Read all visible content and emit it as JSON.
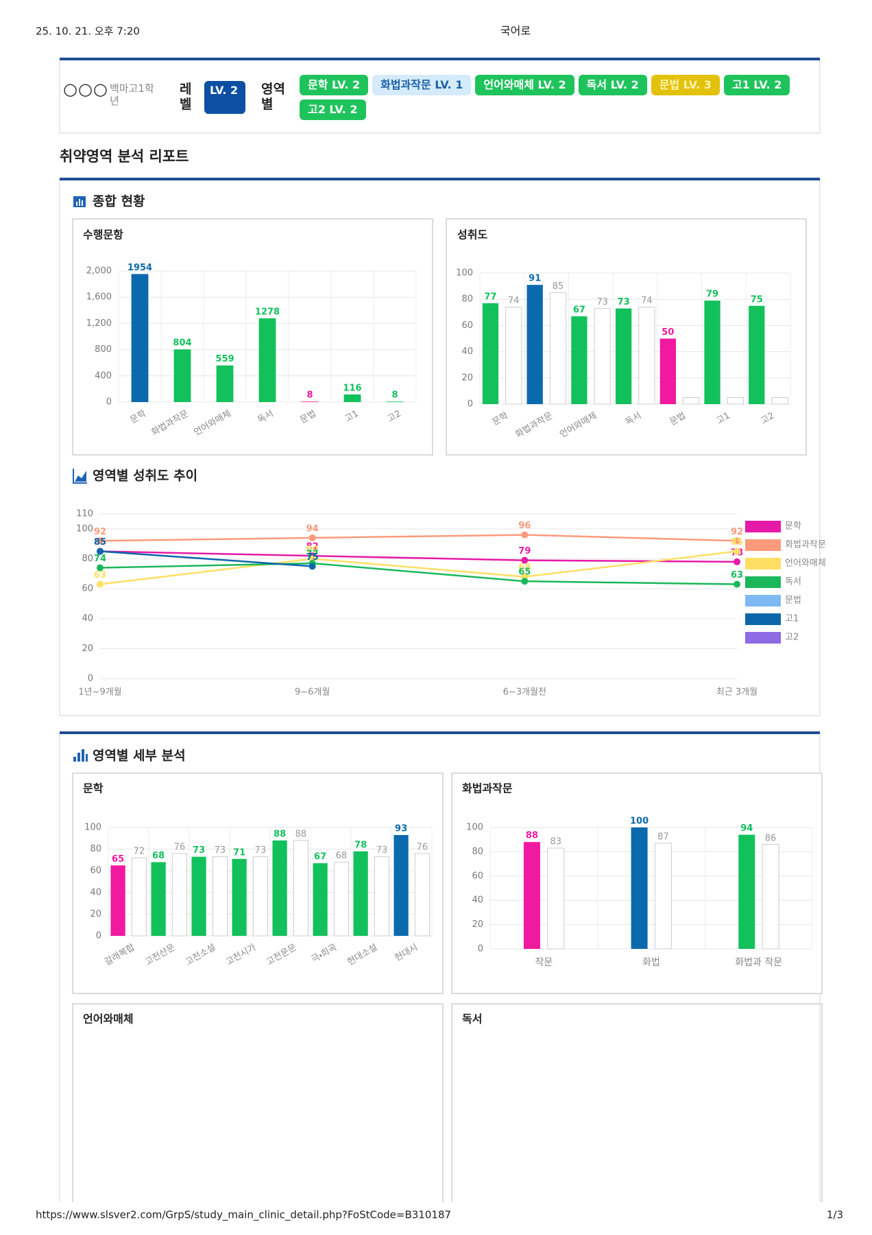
{
  "browser": {
    "datetime": "25. 10. 21. 오후 7:20",
    "page_title": "국어로",
    "url": "https://www.slsver2.com/GrpS/study_main_clinic_detail.php?FoStCode=B310187",
    "page_number": "1/3"
  },
  "student": {
    "name": "○○○",
    "school": "백마고1학년",
    "level_label": "레벨",
    "level": "LV. 2",
    "area_label": "영역별",
    "badges": [
      {
        "text": "문학 LV. 2",
        "color": "#1fc35c",
        "text_color": "#ffffff"
      },
      {
        "text": "화법과작문 LV. 1",
        "color": "#d5ebfb",
        "text_color": "#1b5fa6"
      },
      {
        "text": "언어와매체 LV. 2",
        "color": "#1fc35c",
        "text_color": "#ffffff"
      },
      {
        "text": "독서 LV. 2",
        "color": "#1fc35c",
        "text_color": "#ffffff"
      },
      {
        "text": "문법 LV. 3",
        "color": "#e2c20a",
        "text_color": "#fff6b0"
      },
      {
        "text": "고1 LV. 2",
        "color": "#1fc35c",
        "text_color": "#ffffff"
      },
      {
        "text": "고2 LV. 2",
        "color": "#1fc35c",
        "text_color": "#ffffff"
      }
    ]
  },
  "report_title": "취약영역 분석 리포트",
  "sections": [
    "종합 현황",
    "영역별 세부 분석"
  ],
  "empty_panels": [
    "언어와매체",
    "독서"
  ],
  "chart_data": [
    {
      "type": "bar",
      "title": "수행문항",
      "categories": [
        "문학",
        "화법과작문",
        "언어와매체",
        "독서",
        "문법",
        "고1",
        "고2"
      ],
      "values": [
        1954,
        804,
        559,
        1278,
        8,
        116,
        8
      ],
      "colors": [
        "#0b6aad",
        "#12c15c",
        "#12c15c",
        "#12c15c",
        "#f0199f",
        "#12c15c",
        "#12c15c"
      ],
      "ylim": [
        0,
        2000
      ],
      "yticks": [
        0,
        400,
        800,
        {
          "value": 1200,
          "label": "1,200"
        },
        {
          "value": 1600,
          "label": "1,600"
        },
        {
          "value": 2000,
          "label": "2,000"
        }
      ],
      "grid": true
    },
    {
      "type": "bar",
      "title": "성취도",
      "categories": [
        "문학",
        "화법과작문",
        "언어와매체",
        "독서",
        "문법",
        "고1",
        "고2"
      ],
      "series": [
        {
          "colors": [
            "#12c15c",
            "#0b6aad",
            "#12c15c",
            "#12c15c",
            "#f0199f",
            "#12c15c",
            "#12c15c"
          ],
          "values": [
            77,
            91,
            67,
            73,
            50,
            79,
            75
          ]
        },
        {
          "color": "#ffffff",
          "values": [
            74,
            85,
            73,
            74,
            5,
            5,
            5
          ],
          "value_labels": [
            "74",
            "85",
            "73",
            "74",
            null,
            null,
            null
          ]
        }
      ],
      "ylim": [
        0,
        100
      ],
      "yticks": [
        0,
        20,
        40,
        60,
        80,
        100
      ],
      "grid": true
    },
    {
      "type": "line",
      "title": "영역별 성취도 추이",
      "categories": [
        "1년~9개월",
        "9~6개월",
        "6~3개월전",
        "최근 3개월"
      ],
      "series": [
        {
          "name": "문학",
          "color": "#e61aa8",
          "values": [
            85,
            82,
            79,
            78
          ]
        },
        {
          "name": "화법과작문",
          "color": "#ff9a7c",
          "values": [
            92,
            94,
            96,
            92
          ]
        },
        {
          "name": "언어와매체",
          "color": "#ffdf63",
          "values": [
            63,
            80,
            68,
            85
          ]
        },
        {
          "name": "독서",
          "color": "#1bb75b",
          "values": [
            74,
            77,
            65,
            63
          ]
        },
        {
          "name": "문법",
          "color": "#7fb9f4",
          "values": [
            null,
            null,
            null,
            null
          ]
        },
        {
          "name": "고1",
          "color": "#0c67aa",
          "values": [
            85,
            75,
            null,
            null
          ]
        },
        {
          "name": "고2",
          "color": "#8c6be4",
          "values": [
            null,
            null,
            null,
            null
          ]
        }
      ],
      "ylim": [
        0,
        110
      ],
      "yticks": [
        0,
        20,
        40,
        60,
        80,
        100,
        110
      ],
      "grid": true,
      "legend": "right"
    },
    {
      "type": "bar",
      "title": "문학",
      "categories": [
        "갈래복합",
        "고전산문",
        "고전소설",
        "고전시가",
        "고전운문",
        "극・희곡",
        "현대소설",
        "현대시"
      ],
      "series": [
        {
          "colors": [
            "#f0199f",
            "#12c15c",
            "#12c15c",
            "#12c15c",
            "#12c15c",
            "#12c15c",
            "#12c15c",
            "#0b6aad"
          ],
          "values": [
            65,
            68,
            73,
            71,
            88,
            67,
            78,
            93
          ]
        },
        {
          "color": "#ffffff",
          "values": [
            72,
            76,
            73,
            73,
            88,
            68,
            73,
            76
          ]
        }
      ],
      "ylim": [
        0,
        100
      ],
      "yticks": [
        0,
        20,
        40,
        60,
        80,
        100
      ],
      "grid": true
    },
    {
      "type": "bar",
      "title": "화법과작문",
      "categories": [
        "작문",
        "화법",
        "화법과 작문"
      ],
      "series": [
        {
          "colors": [
            "#f0199f",
            "#0b6aad",
            "#12c15c"
          ],
          "values": [
            88,
            100,
            94
          ]
        },
        {
          "color": "#ffffff",
          "values": [
            83,
            87,
            86
          ]
        }
      ],
      "ylim": [
        0,
        100
      ],
      "yticks": [
        0,
        20,
        40,
        60,
        80,
        100
      ],
      "grid": true
    }
  ]
}
